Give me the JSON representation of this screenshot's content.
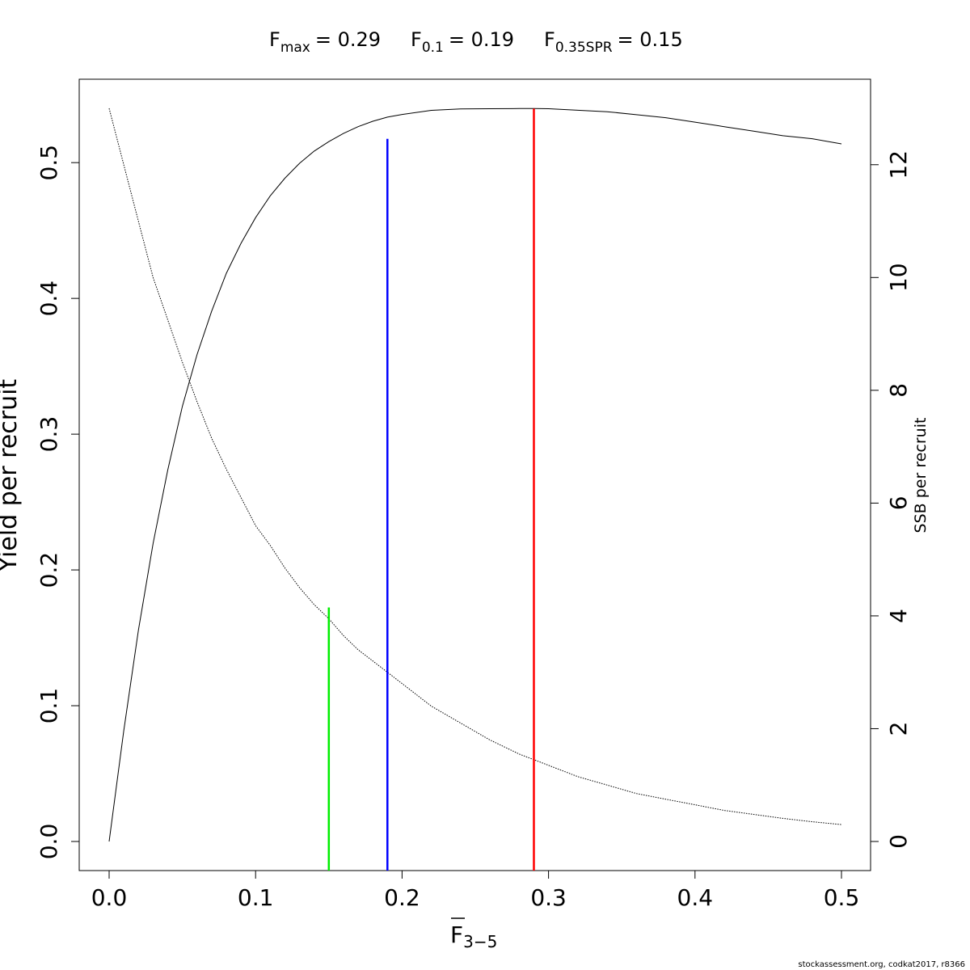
{
  "chart_data": {
    "type": "line",
    "header": {
      "fmax": {
        "symbol": "F",
        "sub": "max",
        "value_text": "= 0.29"
      },
      "f01": {
        "symbol": "F",
        "sub": "0.1",
        "value_text": "= 0.19"
      },
      "fspr": {
        "symbol": "F",
        "sub": "0.35SPR",
        "value_text": "= 0.15"
      }
    },
    "xlabel": {
      "main": "F",
      "sub": "3−5"
    },
    "ylabel_left": "Yield per recruit",
    "ylabel_right": "SSB per recruit",
    "xlim": [
      0,
      0.5
    ],
    "ylim_left": [
      0,
      0.54
    ],
    "ylim_right": [
      0,
      13
    ],
    "x_ticks": [
      "0.0",
      "0.1",
      "0.2",
      "0.3",
      "0.4",
      "0.5"
    ],
    "y_left_ticks": [
      "0.0",
      "0.1",
      "0.2",
      "0.3",
      "0.4",
      "0.5"
    ],
    "y_right_ticks": [
      "0",
      "2",
      "4",
      "6",
      "8",
      "10",
      "12"
    ],
    "series": [
      {
        "axis": "left",
        "style": "solid",
        "color": "#000000",
        "x": [
          0,
          0.01,
          0.02,
          0.03,
          0.04,
          0.05,
          0.06,
          0.07,
          0.08,
          0.09,
          0.1,
          0.11,
          0.12,
          0.13,
          0.14,
          0.15,
          0.16,
          0.17,
          0.18,
          0.19,
          0.2,
          0.22,
          0.24,
          0.26,
          0.28,
          0.29,
          0.3,
          0.32,
          0.34,
          0.36,
          0.38,
          0.4,
          0.42,
          0.44,
          0.46,
          0.48,
          0.5
        ],
        "y": [
          0,
          0.0815,
          0.1555,
          0.2195,
          0.2735,
          0.3205,
          0.3585,
          0.3905,
          0.4185,
          0.4405,
          0.4595,
          0.4755,
          0.4885,
          0.4995,
          0.5085,
          0.5155,
          0.5215,
          0.5265,
          0.5305,
          0.5335,
          0.5355,
          0.5385,
          0.5395,
          0.5397,
          0.5398,
          0.5398,
          0.5397,
          0.5386,
          0.5375,
          0.5353,
          0.5331,
          0.5298,
          0.5265,
          0.5232,
          0.5198,
          0.5176,
          0.5138
        ]
      },
      {
        "axis": "right",
        "style": "dotted",
        "color": "#000000",
        "x": [
          0,
          0.01,
          0.02,
          0.03,
          0.04,
          0.05,
          0.06,
          0.07,
          0.08,
          0.09,
          0.1,
          0.11,
          0.12,
          0.13,
          0.14,
          0.15,
          0.16,
          0.17,
          0.18,
          0.19,
          0.2,
          0.22,
          0.24,
          0.26,
          0.28,
          0.29,
          0.3,
          0.32,
          0.34,
          0.36,
          0.38,
          0.4,
          0.42,
          0.44,
          0.46,
          0.48,
          0.5
        ],
        "y": [
          13.0,
          12.0,
          11.0,
          10.0,
          9.25,
          8.5,
          7.8,
          7.15,
          6.6,
          6.1,
          5.6,
          5.25,
          4.85,
          4.5,
          4.2,
          3.95,
          3.65,
          3.4,
          3.2,
          3.0,
          2.8,
          2.4,
          2.1,
          1.8,
          1.55,
          1.45,
          1.35,
          1.15,
          1.0,
          0.85,
          0.75,
          0.65,
          0.55,
          0.48,
          0.41,
          0.35,
          0.3
        ]
      }
    ],
    "reference_lines": [
      {
        "x": 0.15,
        "y_top": 4.15,
        "axis": "right",
        "color": "#00ee00"
      },
      {
        "x": 0.19,
        "y_top": 0.5175,
        "axis": "left",
        "color": "#0000ff"
      },
      {
        "x": 0.29,
        "y_top": 0.5398,
        "axis": "left",
        "color": "#ff0000"
      }
    ],
    "footer": "stockassessment.org, codkat2017, r8366"
  }
}
